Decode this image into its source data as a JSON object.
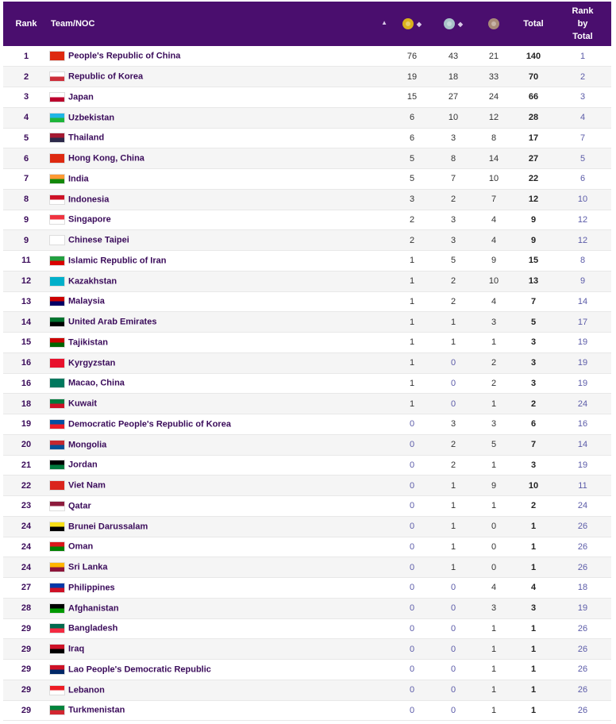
{
  "header": {
    "rank": "Rank",
    "team": "Team/NOC",
    "total": "Total",
    "rank_by_total": [
      "Rank",
      "by",
      "Total"
    ]
  },
  "colors": {
    "header_bg": "#4a0e6e",
    "gold": "#d9b21c",
    "silver": "#a9c3c9",
    "bronze": "#a88a78"
  },
  "rows": [
    {
      "rank": "1",
      "team": "People's Republic of China",
      "gold": "76",
      "silver": "43",
      "bronze": "21",
      "total": "140",
      "rank_by_total": "1",
      "flag_colors": [
        "#de2910",
        "#de2910"
      ]
    },
    {
      "rank": "2",
      "team": "Republic of Korea",
      "gold": "19",
      "silver": "18",
      "bronze": "33",
      "total": "70",
      "rank_by_total": "2",
      "flag_colors": [
        "#ffffff",
        "#cd2e3a"
      ]
    },
    {
      "rank": "3",
      "team": "Japan",
      "gold": "15",
      "silver": "27",
      "bronze": "24",
      "total": "66",
      "rank_by_total": "3",
      "flag_colors": [
        "#ffffff",
        "#bc002d"
      ]
    },
    {
      "rank": "4",
      "team": "Uzbekistan",
      "gold": "6",
      "silver": "10",
      "bronze": "12",
      "total": "28",
      "rank_by_total": "4",
      "flag_colors": [
        "#1eb5e5",
        "#1eb53a"
      ]
    },
    {
      "rank": "5",
      "team": "Thailand",
      "gold": "6",
      "silver": "3",
      "bronze": "8",
      "total": "17",
      "rank_by_total": "7",
      "flag_colors": [
        "#a51931",
        "#2d2a4a"
      ]
    },
    {
      "rank": "6",
      "team": "Hong Kong, China",
      "gold": "5",
      "silver": "8",
      "bronze": "14",
      "total": "27",
      "rank_by_total": "5",
      "flag_colors": [
        "#de2910",
        "#de2910"
      ]
    },
    {
      "rank": "7",
      "team": "India",
      "gold": "5",
      "silver": "7",
      "bronze": "10",
      "total": "22",
      "rank_by_total": "6",
      "flag_colors": [
        "#ff9933",
        "#138808"
      ]
    },
    {
      "rank": "8",
      "team": "Indonesia",
      "gold": "3",
      "silver": "2",
      "bronze": "7",
      "total": "12",
      "rank_by_total": "10",
      "flag_colors": [
        "#ce1126",
        "#ffffff"
      ]
    },
    {
      "rank": "9",
      "team": "Singapore",
      "gold": "2",
      "silver": "3",
      "bronze": "4",
      "total": "9",
      "rank_by_total": "12",
      "flag_colors": [
        "#ef3340",
        "#ffffff"
      ]
    },
    {
      "rank": "9",
      "team": "Chinese Taipei",
      "gold": "2",
      "silver": "3",
      "bronze": "4",
      "total": "9",
      "rank_by_total": "12",
      "flag_colors": [
        "#ffffff",
        "#ffffff"
      ]
    },
    {
      "rank": "11",
      "team": "Islamic Republic of Iran",
      "gold": "1",
      "silver": "5",
      "bronze": "9",
      "total": "15",
      "rank_by_total": "8",
      "flag_colors": [
        "#239f40",
        "#da0000"
      ]
    },
    {
      "rank": "12",
      "team": "Kazakhstan",
      "gold": "1",
      "silver": "2",
      "bronze": "10",
      "total": "13",
      "rank_by_total": "9",
      "flag_colors": [
        "#00afca",
        "#00afca"
      ]
    },
    {
      "rank": "13",
      "team": "Malaysia",
      "gold": "1",
      "silver": "2",
      "bronze": "4",
      "total": "7",
      "rank_by_total": "14",
      "flag_colors": [
        "#cc0001",
        "#010066"
      ]
    },
    {
      "rank": "14",
      "team": "United Arab Emirates",
      "gold": "1",
      "silver": "1",
      "bronze": "3",
      "total": "5",
      "rank_by_total": "17",
      "flag_colors": [
        "#00732f",
        "#000000"
      ]
    },
    {
      "rank": "15",
      "team": "Tajikistan",
      "gold": "1",
      "silver": "1",
      "bronze": "1",
      "total": "3",
      "rank_by_total": "19",
      "flag_colors": [
        "#cc0000",
        "#006600"
      ]
    },
    {
      "rank": "16",
      "team": "Kyrgyzstan",
      "gold": "1",
      "silver": "0",
      "bronze": "2",
      "total": "3",
      "rank_by_total": "19",
      "flag_colors": [
        "#e8112d",
        "#e8112d"
      ]
    },
    {
      "rank": "16",
      "team": "Macao, China",
      "gold": "1",
      "silver": "0",
      "bronze": "2",
      "total": "3",
      "rank_by_total": "19",
      "flag_colors": [
        "#00785e",
        "#00785e"
      ]
    },
    {
      "rank": "18",
      "team": "Kuwait",
      "gold": "1",
      "silver": "0",
      "bronze": "1",
      "total": "2",
      "rank_by_total": "24",
      "flag_colors": [
        "#007a3d",
        "#ce1126"
      ]
    },
    {
      "rank": "19",
      "team": "Democratic People's Republic of Korea",
      "gold": "0",
      "silver": "3",
      "bronze": "3",
      "total": "6",
      "rank_by_total": "16",
      "flag_colors": [
        "#024fa2",
        "#ed1c27"
      ]
    },
    {
      "rank": "20",
      "team": "Mongolia",
      "gold": "0",
      "silver": "2",
      "bronze": "5",
      "total": "7",
      "rank_by_total": "14",
      "flag_colors": [
        "#c4272f",
        "#015197"
      ]
    },
    {
      "rank": "21",
      "team": "Jordan",
      "gold": "0",
      "silver": "2",
      "bronze": "1",
      "total": "3",
      "rank_by_total": "19",
      "flag_colors": [
        "#000000",
        "#007a3d"
      ]
    },
    {
      "rank": "22",
      "team": "Viet Nam",
      "gold": "0",
      "silver": "1",
      "bronze": "9",
      "total": "10",
      "rank_by_total": "11",
      "flag_colors": [
        "#da251d",
        "#da251d"
      ]
    },
    {
      "rank": "23",
      "team": "Qatar",
      "gold": "0",
      "silver": "1",
      "bronze": "1",
      "total": "2",
      "rank_by_total": "24",
      "flag_colors": [
        "#8d1b3d",
        "#ffffff"
      ]
    },
    {
      "rank": "24",
      "team": "Brunei Darussalam",
      "gold": "0",
      "silver": "1",
      "bronze": "0",
      "total": "1",
      "rank_by_total": "26",
      "flag_colors": [
        "#f7e017",
        "#000000"
      ]
    },
    {
      "rank": "24",
      "team": "Oman",
      "gold": "0",
      "silver": "1",
      "bronze": "0",
      "total": "1",
      "rank_by_total": "26",
      "flag_colors": [
        "#db161b",
        "#008000"
      ]
    },
    {
      "rank": "24",
      "team": "Sri Lanka",
      "gold": "0",
      "silver": "1",
      "bronze": "0",
      "total": "1",
      "rank_by_total": "26",
      "flag_colors": [
        "#ffb700",
        "#8d153a"
      ]
    },
    {
      "rank": "27",
      "team": "Philippines",
      "gold": "0",
      "silver": "0",
      "bronze": "4",
      "total": "4",
      "rank_by_total": "18",
      "flag_colors": [
        "#0038a8",
        "#ce1126"
      ]
    },
    {
      "rank": "28",
      "team": "Afghanistan",
      "gold": "0",
      "silver": "0",
      "bronze": "3",
      "total": "3",
      "rank_by_total": "19",
      "flag_colors": [
        "#000000",
        "#009900"
      ]
    },
    {
      "rank": "29",
      "team": "Bangladesh",
      "gold": "0",
      "silver": "0",
      "bronze": "1",
      "total": "1",
      "rank_by_total": "26",
      "flag_colors": [
        "#006a4e",
        "#f42a41"
      ]
    },
    {
      "rank": "29",
      "team": "Iraq",
      "gold": "0",
      "silver": "0",
      "bronze": "1",
      "total": "1",
      "rank_by_total": "26",
      "flag_colors": [
        "#ce1126",
        "#000000"
      ]
    },
    {
      "rank": "29",
      "team": "Lao People's Democratic Republic",
      "gold": "0",
      "silver": "0",
      "bronze": "1",
      "total": "1",
      "rank_by_total": "26",
      "flag_colors": [
        "#ce1126",
        "#002868"
      ]
    },
    {
      "rank": "29",
      "team": "Lebanon",
      "gold": "0",
      "silver": "0",
      "bronze": "1",
      "total": "1",
      "rank_by_total": "26",
      "flag_colors": [
        "#ed1c24",
        "#ffffff"
      ]
    },
    {
      "rank": "29",
      "team": "Turkmenistan",
      "gold": "0",
      "silver": "0",
      "bronze": "1",
      "total": "1",
      "rank_by_total": "26",
      "flag_colors": [
        "#00843d",
        "#d22630"
      ]
    }
  ]
}
